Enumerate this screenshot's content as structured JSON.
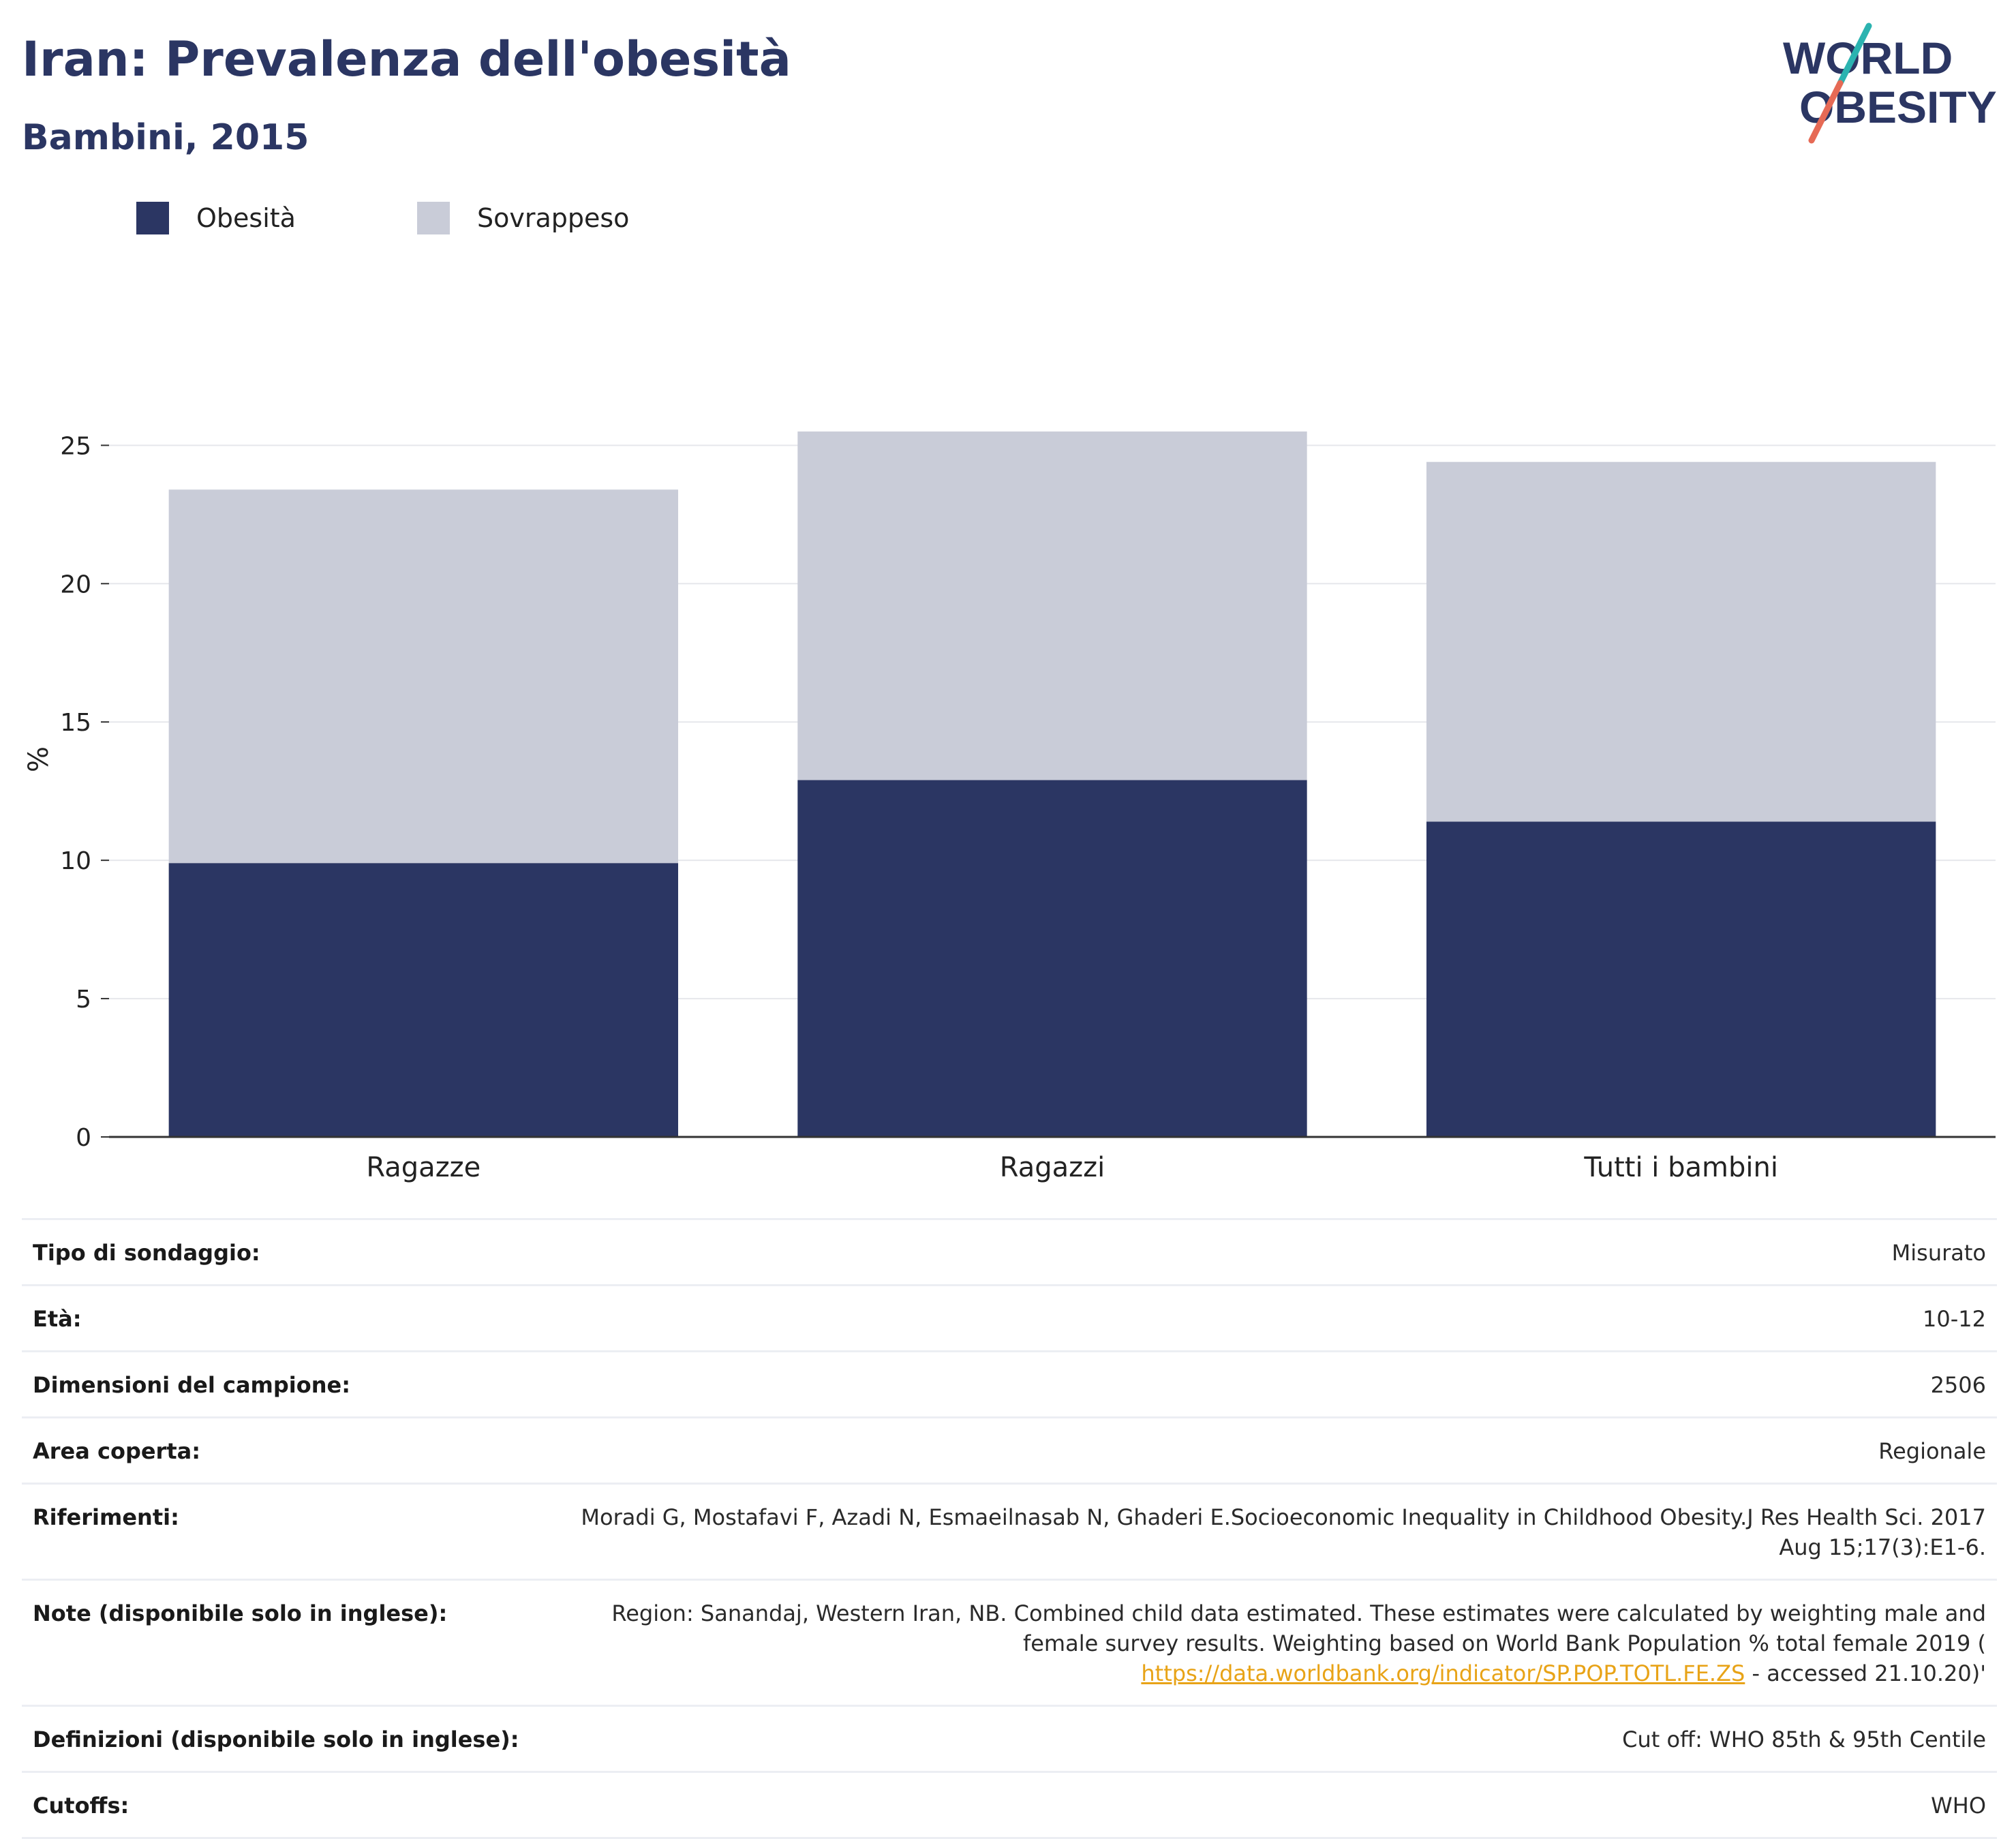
{
  "header": {
    "title": "Iran: Prevalenza dell'obesità",
    "subtitle": "Bambini, 2015"
  },
  "logo": {
    "line1": "WORLD",
    "line2": "OBESITY"
  },
  "legend": [
    {
      "label": "Obesità",
      "color": "#2b3663"
    },
    {
      "label": "Sovrappeso",
      "color": "#c9ccd8"
    }
  ],
  "chart_data": {
    "type": "bar",
    "stacked": true,
    "categories": [
      "Ragazze",
      "Ragazzi",
      "Tutti i bambini"
    ],
    "series": [
      {
        "name": "Obesità",
        "values": [
          9.9,
          12.9,
          11.4
        ],
        "color": "#2b3663"
      },
      {
        "name": "Sovrappeso",
        "values": [
          13.5,
          12.6,
          13.0
        ],
        "color": "#c9ccd8"
      }
    ],
    "ylabel": "%",
    "xlabel": "",
    "ylim": [
      0,
      27.3
    ],
    "yticks": [
      0,
      5,
      10,
      15,
      20,
      25
    ],
    "grid": true
  },
  "meta": [
    {
      "key": "Tipo di sondaggio:",
      "value": "Misurato"
    },
    {
      "key": "Età:",
      "value": "10-12"
    },
    {
      "key": "Dimensioni del campione:",
      "value": "2506"
    },
    {
      "key": "Area coperta:",
      "value": "Regionale"
    },
    {
      "key": "Riferimenti:",
      "value": "Moradi G, Mostafavi F, Azadi N, Esmaeilnasab N, Ghaderi E.Socioeconomic Inequality in Childhood Obesity.J Res Health Sci. 2017 Aug 15;17(3):E1-6."
    },
    {
      "key": "Note (disponibile solo in inglese):",
      "value_before": "Region: Sanandaj, Western Iran, NB. Combined child data estimated. These estimates were calculated by weighting male and female survey results. Weighting based on World Bank Population % total female 2019 (",
      "link": "https://data.worldbank.org/indicator/SP.POP.TOTL.FE.ZS",
      "value_after": " - accessed 21.10.20)'"
    },
    {
      "key": "Definizioni (disponibile solo in inglese):",
      "value": "Cut off: WHO 85th & 95th Centile"
    },
    {
      "key": "Cutoffs:",
      "value": "WHO"
    }
  ]
}
